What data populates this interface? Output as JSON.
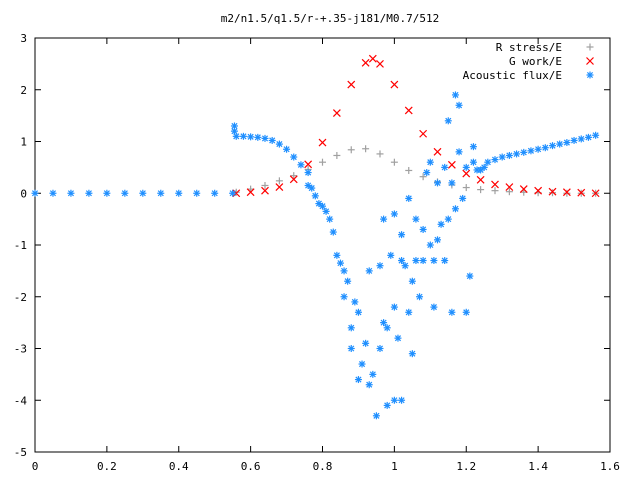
{
  "chart_data": {
    "type": "scatter",
    "title": "m2/n1.5/q1.5/r-+.35-j181/M0.7/512",
    "xlabel": "",
    "ylabel": "",
    "xlim": [
      0,
      1.6
    ],
    "ylim": [
      -5,
      3
    ],
    "x_ticks": [
      0,
      0.2,
      0.4,
      0.6,
      0.8,
      1,
      1.2,
      1.4,
      1.6
    ],
    "x_tick_labels": [
      "0",
      "0.2",
      "0.4",
      "0.6",
      "0.8",
      "1",
      "1.2",
      "1.4",
      "1.6"
    ],
    "y_ticks": [
      -5,
      -4,
      -3,
      -2,
      -1,
      0,
      1,
      2,
      3
    ],
    "y_tick_labels": [
      "-5",
      "-4",
      "-3",
      "-2",
      "-1",
      "0",
      "1",
      "2",
      "3"
    ],
    "grid": false,
    "legend_position": "top-right",
    "series": [
      {
        "name": "R stress/E",
        "marker": "+",
        "color": "#a0a0a0",
        "points": [
          [
            0.56,
            0.02
          ],
          [
            0.6,
            0.08
          ],
          [
            0.64,
            0.15
          ],
          [
            0.68,
            0.24
          ],
          [
            0.72,
            0.34
          ],
          [
            0.76,
            0.46
          ],
          [
            0.8,
            0.6
          ],
          [
            0.84,
            0.73
          ],
          [
            0.88,
            0.84
          ],
          [
            0.92,
            0.86
          ],
          [
            0.96,
            0.76
          ],
          [
            1.0,
            0.6
          ],
          [
            1.04,
            0.44
          ],
          [
            1.08,
            0.32
          ],
          [
            1.12,
            0.22
          ],
          [
            1.16,
            0.16
          ],
          [
            1.2,
            0.11
          ],
          [
            1.24,
            0.07
          ],
          [
            1.28,
            0.05
          ],
          [
            1.32,
            0.03
          ],
          [
            1.36,
            0.02
          ],
          [
            1.4,
            0.01
          ],
          [
            1.44,
            0.01
          ],
          [
            1.48,
            0.0
          ],
          [
            1.52,
            0.0
          ],
          [
            1.56,
            0.0
          ]
        ]
      },
      {
        "name": "G work/E",
        "marker": "x",
        "color": "#ff0000",
        "points": [
          [
            0.56,
            0.0
          ],
          [
            0.6,
            0.02
          ],
          [
            0.64,
            0.05
          ],
          [
            0.68,
            0.12
          ],
          [
            0.72,
            0.27
          ],
          [
            0.76,
            0.56
          ],
          [
            0.8,
            0.98
          ],
          [
            0.84,
            1.55
          ],
          [
            0.88,
            2.1
          ],
          [
            0.92,
            2.52
          ],
          [
            0.94,
            2.6
          ],
          [
            0.96,
            2.5
          ],
          [
            1.0,
            2.1
          ],
          [
            1.04,
            1.6
          ],
          [
            1.08,
            1.15
          ],
          [
            1.12,
            0.8
          ],
          [
            1.16,
            0.55
          ],
          [
            1.2,
            0.38
          ],
          [
            1.24,
            0.26
          ],
          [
            1.28,
            0.17
          ],
          [
            1.32,
            0.12
          ],
          [
            1.36,
            0.08
          ],
          [
            1.4,
            0.05
          ],
          [
            1.44,
            0.03
          ],
          [
            1.48,
            0.02
          ],
          [
            1.52,
            0.01
          ],
          [
            1.56,
            0.0
          ]
        ]
      },
      {
        "name": "Acoustic flux/E",
        "marker": "*",
        "color": "#1f8fff",
        "points": [
          [
            0.0,
            0.0
          ],
          [
            0.05,
            0.0
          ],
          [
            0.1,
            0.0
          ],
          [
            0.15,
            0.0
          ],
          [
            0.2,
            0.0
          ],
          [
            0.25,
            0.0
          ],
          [
            0.3,
            0.0
          ],
          [
            0.35,
            0.0
          ],
          [
            0.4,
            0.0
          ],
          [
            0.45,
            0.0
          ],
          [
            0.5,
            0.0
          ],
          [
            0.55,
            0.0
          ],
          [
            0.555,
            1.3
          ],
          [
            0.555,
            1.2
          ],
          [
            0.56,
            1.1
          ],
          [
            0.58,
            1.1
          ],
          [
            0.6,
            1.09
          ],
          [
            0.62,
            1.08
          ],
          [
            0.64,
            1.06
          ],
          [
            0.66,
            1.02
          ],
          [
            0.68,
            0.95
          ],
          [
            0.7,
            0.85
          ],
          [
            0.72,
            0.7
          ],
          [
            0.74,
            0.55
          ],
          [
            0.76,
            0.4
          ],
          [
            0.76,
            0.15
          ],
          [
            0.77,
            0.1
          ],
          [
            0.78,
            -0.05
          ],
          [
            0.79,
            -0.2
          ],
          [
            0.8,
            -0.25
          ],
          [
            0.81,
            -0.35
          ],
          [
            0.82,
            -0.5
          ],
          [
            0.83,
            -0.75
          ],
          [
            0.84,
            -1.2
          ],
          [
            0.85,
            -1.35
          ],
          [
            0.86,
            -1.5
          ],
          [
            0.86,
            -2.0
          ],
          [
            0.87,
            -1.7
          ],
          [
            0.88,
            -2.6
          ],
          [
            0.88,
            -3.0
          ],
          [
            0.89,
            -2.1
          ],
          [
            0.9,
            -2.3
          ],
          [
            0.9,
            -3.6
          ],
          [
            0.91,
            -3.3
          ],
          [
            0.92,
            -2.9
          ],
          [
            0.93,
            -3.7
          ],
          [
            0.93,
            -1.5
          ],
          [
            0.94,
            -3.5
          ],
          [
            0.95,
            -4.3
          ],
          [
            0.96,
            -1.4
          ],
          [
            0.96,
            -3.0
          ],
          [
            0.97,
            -2.5
          ],
          [
            0.97,
            -0.5
          ],
          [
            0.98,
            -4.1
          ],
          [
            0.98,
            -2.6
          ],
          [
            0.99,
            -1.2
          ],
          [
            1.0,
            -4.0
          ],
          [
            1.0,
            -2.2
          ],
          [
            1.0,
            -0.4
          ],
          [
            1.01,
            -2.8
          ],
          [
            1.02,
            -1.3
          ],
          [
            1.02,
            -4.0
          ],
          [
            1.02,
            -0.8
          ],
          [
            1.03,
            -1.4
          ],
          [
            1.04,
            -2.3
          ],
          [
            1.04,
            -0.1
          ],
          [
            1.05,
            -1.7
          ],
          [
            1.05,
            -3.1
          ],
          [
            1.06,
            -0.5
          ],
          [
            1.06,
            -1.3
          ],
          [
            1.07,
            -2.0
          ],
          [
            1.08,
            -0.7
          ],
          [
            1.08,
            -1.3
          ],
          [
            1.09,
            0.4
          ],
          [
            1.1,
            -1.0
          ],
          [
            1.1,
            0.6
          ],
          [
            1.11,
            -2.2
          ],
          [
            1.11,
            -1.3
          ],
          [
            1.12,
            -0.9
          ],
          [
            1.12,
            0.2
          ],
          [
            1.13,
            -0.6
          ],
          [
            1.14,
            -1.3
          ],
          [
            1.14,
            0.5
          ],
          [
            1.15,
            1.4
          ],
          [
            1.15,
            -0.5
          ],
          [
            1.16,
            -2.3
          ],
          [
            1.16,
            0.2
          ],
          [
            1.17,
            1.9
          ],
          [
            1.17,
            -0.3
          ],
          [
            1.18,
            1.7
          ],
          [
            1.18,
            0.8
          ],
          [
            1.19,
            -0.1
          ],
          [
            1.2,
            -2.3
          ],
          [
            1.2,
            0.5
          ],
          [
            1.21,
            -1.6
          ],
          [
            1.22,
            0.6
          ],
          [
            1.22,
            0.9
          ],
          [
            1.23,
            0.45
          ],
          [
            1.24,
            0.45
          ],
          [
            1.25,
            0.5
          ],
          [
            1.26,
            0.6
          ],
          [
            1.28,
            0.65
          ],
          [
            1.3,
            0.7
          ],
          [
            1.32,
            0.73
          ],
          [
            1.34,
            0.76
          ],
          [
            1.36,
            0.79
          ],
          [
            1.38,
            0.82
          ],
          [
            1.4,
            0.85
          ],
          [
            1.42,
            0.88
          ],
          [
            1.44,
            0.92
          ],
          [
            1.46,
            0.95
          ],
          [
            1.48,
            0.98
          ],
          [
            1.5,
            1.02
          ],
          [
            1.52,
            1.05
          ],
          [
            1.54,
            1.08
          ],
          [
            1.56,
            1.12
          ]
        ]
      }
    ]
  }
}
